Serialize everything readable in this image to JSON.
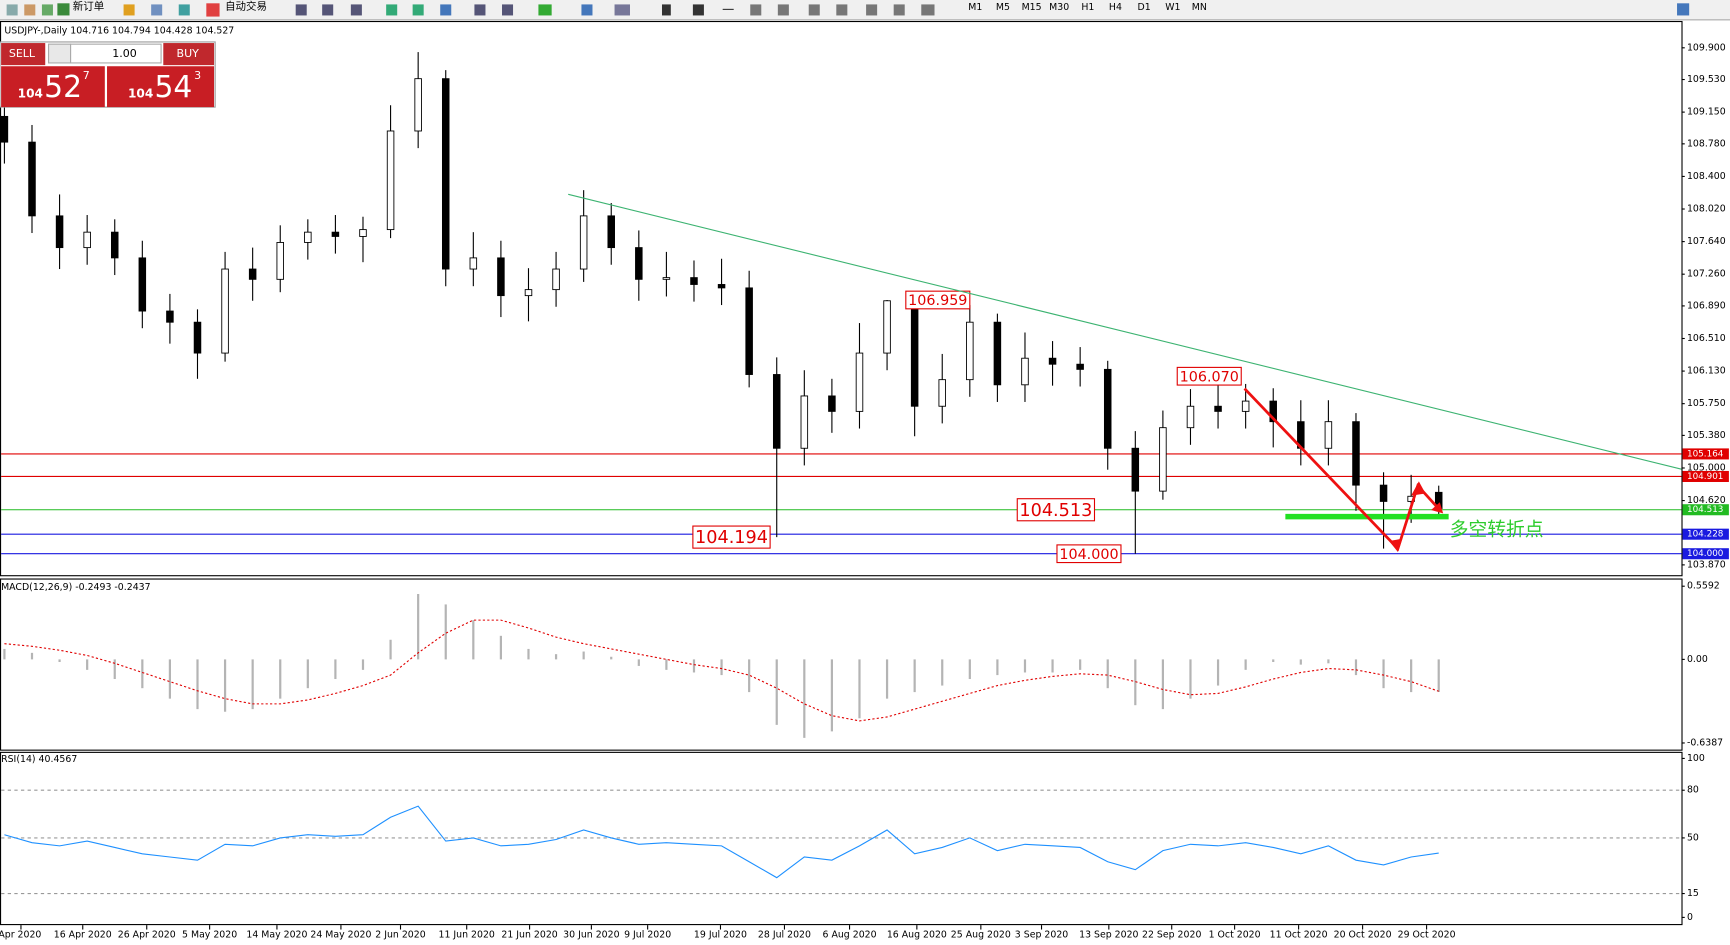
{
  "toolbar": {
    "buttons": [
      "新订单",
      "自动交易"
    ],
    "timeframes": [
      "M1",
      "M5",
      "M15",
      "M30",
      "H1",
      "H4",
      "D1",
      "W1",
      "MN"
    ]
  },
  "trade_panel": {
    "sell": "SELL",
    "lots": "1.00",
    "buy": "BUY",
    "sell_price": {
      "big": "104",
      "pips": "52",
      "frac": "7"
    },
    "buy_price": {
      "big": "104",
      "pips": "54",
      "frac": "3"
    }
  },
  "chart_data": [
    {
      "type": "candlestick",
      "title": "USDJPY-,Daily  104.716 104.794 104.428 104.527",
      "open": [
        109.1,
        108.8,
        107.94,
        107.57,
        107.75,
        107.45,
        106.83,
        106.7,
        106.34,
        107.32,
        107.2,
        107.63,
        107.75,
        107.7,
        107.78,
        108.93,
        109.54,
        107.32,
        107.45,
        107.01,
        107.08,
        107.32,
        107.94,
        107.57,
        107.2,
        107.22,
        107.14,
        107.1,
        106.09,
        105.23,
        105.84,
        105.66,
        106.34,
        106.95,
        105.72,
        106.03,
        106.7,
        105.97,
        106.28,
        106.21,
        106.15,
        105.23,
        104.73,
        105.47,
        105.72,
        105.66,
        105.78,
        105.54,
        105.23,
        105.54,
        104.8,
        104.61,
        104.716
      ],
      "high": [
        109.25,
        109.0,
        108.19,
        107.95,
        107.9,
        107.65,
        107.03,
        106.85,
        107.52,
        107.57,
        107.83,
        107.9,
        107.95,
        107.93,
        109.23,
        109.85,
        109.64,
        107.75,
        107.65,
        107.33,
        107.52,
        108.24,
        108.09,
        107.77,
        107.52,
        107.42,
        107.44,
        107.3,
        106.29,
        106.14,
        106.04,
        106.69,
        106.959,
        106.9,
        106.33,
        106.9,
        106.8,
        106.58,
        106.48,
        106.41,
        106.25,
        105.43,
        105.67,
        105.92,
        105.97,
        105.98,
        105.93,
        105.79,
        105.79,
        105.64,
        104.95,
        104.92,
        104.794
      ],
      "low": [
        108.55,
        107.74,
        107.32,
        107.37,
        107.25,
        106.63,
        106.45,
        106.04,
        106.24,
        106.95,
        107.05,
        107.43,
        107.5,
        107.4,
        107.68,
        108.73,
        107.12,
        107.12,
        106.76,
        106.71,
        106.88,
        107.17,
        107.37,
        106.95,
        107.0,
        106.94,
        106.9,
        105.94,
        104.194,
        105.03,
        105.41,
        105.46,
        106.14,
        105.37,
        105.52,
        105.83,
        105.77,
        105.77,
        105.96,
        105.95,
        104.98,
        104.0,
        104.63,
        105.27,
        105.46,
        105.46,
        105.24,
        105.03,
        105.03,
        104.5,
        104.06,
        104.36,
        104.428
      ],
      "close": [
        108.8,
        107.94,
        107.57,
        107.75,
        107.45,
        106.83,
        106.7,
        106.34,
        107.32,
        107.2,
        107.63,
        107.75,
        107.7,
        107.78,
        108.93,
        109.54,
        107.32,
        107.45,
        107.01,
        107.08,
        107.32,
        107.94,
        107.57,
        107.2,
        107.22,
        107.14,
        107.1,
        106.09,
        105.23,
        105.84,
        105.66,
        106.34,
        106.95,
        105.72,
        106.03,
        106.7,
        105.97,
        106.28,
        106.21,
        106.15,
        105.23,
        104.73,
        105.47,
        105.72,
        105.66,
        105.78,
        105.54,
        105.23,
        105.54,
        104.8,
        104.61,
        104.67,
        104.527
      ],
      "ylim": [
        103.75,
        110.2
      ],
      "yticks": [
        {
          "value": 109.9,
          "label": "109.900"
        },
        {
          "value": 109.53,
          "label": "109.530"
        },
        {
          "value": 109.15,
          "label": "109.150"
        },
        {
          "value": 108.78,
          "label": "108.780"
        },
        {
          "value": 108.4,
          "label": "108.400"
        },
        {
          "value": 108.02,
          "label": "108.020"
        },
        {
          "value": 107.64,
          "label": "107.640"
        },
        {
          "value": 107.26,
          "label": "107.260"
        },
        {
          "value": 106.89,
          "label": "106.890"
        },
        {
          "value": 106.51,
          "label": "106.510"
        },
        {
          "value": 106.13,
          "label": "106.130"
        },
        {
          "value": 105.75,
          "label": "105.750"
        },
        {
          "value": 105.38,
          "label": "105.380"
        },
        {
          "value": 105.0,
          "label": "105.000"
        },
        {
          "value": 104.62,
          "label": "104.620"
        },
        {
          "value": 103.87,
          "label": "103.870"
        }
      ],
      "levels": [
        {
          "value": 105.164,
          "label": "105.164",
          "color": "#e00000"
        },
        {
          "value": 104.901,
          "label": "104.901",
          "color": "#e00000"
        },
        {
          "value": 104.513,
          "label": "104.513",
          "color": "#22bb22"
        },
        {
          "value": 104.228,
          "label": "104.228",
          "color": "#1a1ae0"
        },
        {
          "value": 104.0,
          "label": "104.000",
          "color": "#1a1ae0"
        }
      ],
      "annotations": [
        {
          "value": 106.959,
          "label": "106.959"
        },
        {
          "value": 106.07,
          "label": "106.070"
        },
        {
          "value": 104.513,
          "label": "104.513"
        },
        {
          "value": 104.194,
          "label": "104.194"
        },
        {
          "value": 104.0,
          "label": "104.000"
        }
      ],
      "note": "多空转折点",
      "xticks": [
        {
          "value": 0.6,
          "label": "Apr 2020"
        },
        {
          "value": 2.84,
          "label": "16 Apr 2020"
        },
        {
          "value": 5.16,
          "label": "26 Apr 2020"
        },
        {
          "value": 7.44,
          "label": "5 May 2020"
        },
        {
          "value": 9.88,
          "label": "14 May 2020"
        },
        {
          "value": 12.2,
          "label": "24 May 2020"
        },
        {
          "value": 14.36,
          "label": "2 Jun 2020"
        },
        {
          "value": 16.76,
          "label": "11 Jun 2020"
        },
        {
          "value": 19.04,
          "label": "21 Jun 2020"
        },
        {
          "value": 21.28,
          "label": "30 Jun 2020"
        },
        {
          "value": 23.32,
          "label": "9 Jul 2020"
        },
        {
          "value": 25.96,
          "label": "19 Jul 2020"
        },
        {
          "value": 28.28,
          "label": "28 Jul 2020"
        },
        {
          "value": 30.64,
          "label": "6 Aug 2020"
        },
        {
          "value": 33.08,
          "label": "16 Aug 2020"
        },
        {
          "value": 35.4,
          "label": "25 Aug 2020"
        },
        {
          "value": 37.6,
          "label": "3 Sep 2020"
        },
        {
          "value": 40.04,
          "label": "13 Sep 2020"
        },
        {
          "value": 42.32,
          "label": "22 Sep 2020"
        },
        {
          "value": 44.6,
          "label": "1 Oct 2020"
        },
        {
          "value": 46.92,
          "label": "11 Oct 2020"
        },
        {
          "value": 49.24,
          "label": "20 Oct 2020"
        },
        {
          "value": 51.56,
          "label": "29 Oct 2020"
        }
      ]
    },
    {
      "type": "macd",
      "title": "MACD(12,26,9) -0.2493 -0.2437",
      "values": [
        0.08,
        0.05,
        -0.02,
        -0.08,
        -0.15,
        -0.22,
        -0.3,
        -0.38,
        -0.4,
        -0.38,
        -0.3,
        -0.22,
        -0.15,
        -0.08,
        0.15,
        0.5,
        0.42,
        0.3,
        0.18,
        0.08,
        0.04,
        0.06,
        0.02,
        -0.05,
        -0.08,
        -0.1,
        -0.12,
        -0.25,
        -0.5,
        -0.6,
        -0.55,
        -0.45,
        -0.3,
        -0.25,
        -0.2,
        -0.15,
        -0.12,
        -0.1,
        -0.1,
        -0.08,
        -0.22,
        -0.35,
        -0.38,
        -0.3,
        -0.2,
        -0.08,
        -0.02,
        -0.04,
        -0.03,
        -0.12,
        -0.22,
        -0.25,
        -0.2493
      ],
      "signal": [
        0.12,
        0.1,
        0.07,
        0.03,
        -0.03,
        -0.1,
        -0.17,
        -0.24,
        -0.3,
        -0.34,
        -0.34,
        -0.31,
        -0.26,
        -0.2,
        -0.12,
        0.05,
        0.2,
        0.3,
        0.3,
        0.24,
        0.17,
        0.12,
        0.08,
        0.04,
        0.0,
        -0.04,
        -0.07,
        -0.12,
        -0.22,
        -0.34,
        -0.43,
        -0.47,
        -0.44,
        -0.38,
        -0.32,
        -0.26,
        -0.2,
        -0.16,
        -0.13,
        -0.11,
        -0.12,
        -0.17,
        -0.23,
        -0.27,
        -0.26,
        -0.21,
        -0.15,
        -0.1,
        -0.07,
        -0.08,
        -0.12,
        -0.17,
        -0.2437
      ],
      "color": "#b4b4b4",
      "signal_color": "#e00000",
      "ylim": [
        -0.6387,
        0.5592
      ],
      "yticks": [
        0.5592,
        {
          "value": 0,
          "label": "0.00"
        },
        -0.6387
      ]
    },
    {
      "type": "line",
      "title": "RSI(14) 40.4567",
      "values": [
        52,
        47,
        45,
        48,
        44,
        40,
        38,
        36,
        46,
        45,
        50,
        52,
        51,
        52,
        63,
        70,
        48,
        50,
        45,
        46,
        49,
        55,
        50,
        46,
        47,
        46,
        45,
        35,
        25,
        38,
        36,
        45,
        55,
        40,
        44,
        50,
        42,
        46,
        45,
        44,
        35,
        30,
        42,
        46,
        45,
        47,
        44,
        40,
        45,
        36,
        33,
        38,
        40.4567
      ],
      "color": "#1e90ff",
      "ylim": [
        0,
        100
      ],
      "yticks": [
        100,
        80,
        50,
        15,
        0
      ]
    }
  ]
}
